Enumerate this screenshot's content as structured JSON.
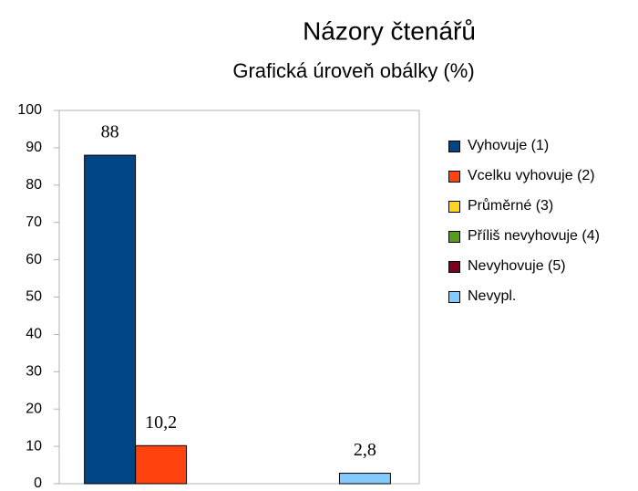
{
  "chart_data": {
    "type": "bar",
    "title": "Názory čtenářů",
    "subtitle": "Grafická úroveň obálky (%)",
    "categories": [
      null
    ],
    "series": [
      {
        "name": "Vyhovuje (1)",
        "color": "#004586",
        "values": [
          88
        ]
      },
      {
        "name": "Vcelku vyhovuje (2)",
        "color": "#ff420e",
        "values": [
          10.2
        ],
        "value_labels": [
          "10,2"
        ]
      },
      {
        "name": "Průměrné (3)",
        "color": "#ffd320",
        "values": [
          0
        ]
      },
      {
        "name": "Příliš nevyhovuje (4)",
        "color": "#579d1c",
        "values": [
          0
        ]
      },
      {
        "name": "Nevyhovuje (5)",
        "color": "#7e0021",
        "values": [
          0
        ]
      },
      {
        "name": "Nevypl.",
        "color": "#83caff",
        "values": [
          2.8
        ],
        "value_labels": [
          "2,8"
        ]
      }
    ],
    "ylim": [
      0,
      100
    ],
    "yticks": [
      0,
      10,
      20,
      30,
      40,
      50,
      60,
      70,
      80,
      90,
      100
    ],
    "grid": false,
    "legend": "right"
  }
}
